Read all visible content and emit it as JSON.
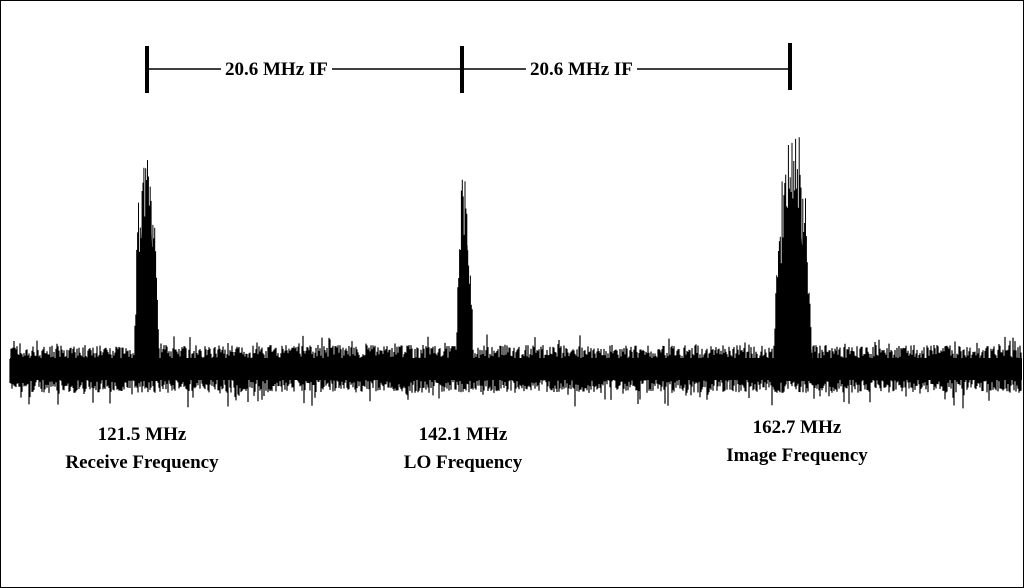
{
  "intervals": [
    {
      "label": "20.6 MHz IF"
    },
    {
      "label": "20.6 MHz IF"
    }
  ],
  "peaks": [
    {
      "frequency": "121.5 MHz",
      "name": "Receive Frequency"
    },
    {
      "frequency": "142.1 MHz",
      "name": "LO Frequency"
    },
    {
      "frequency": "162.7 MHz",
      "name": "Image Frequency"
    }
  ],
  "colors": {
    "trace": "#000000",
    "background": "#ffffff"
  }
}
